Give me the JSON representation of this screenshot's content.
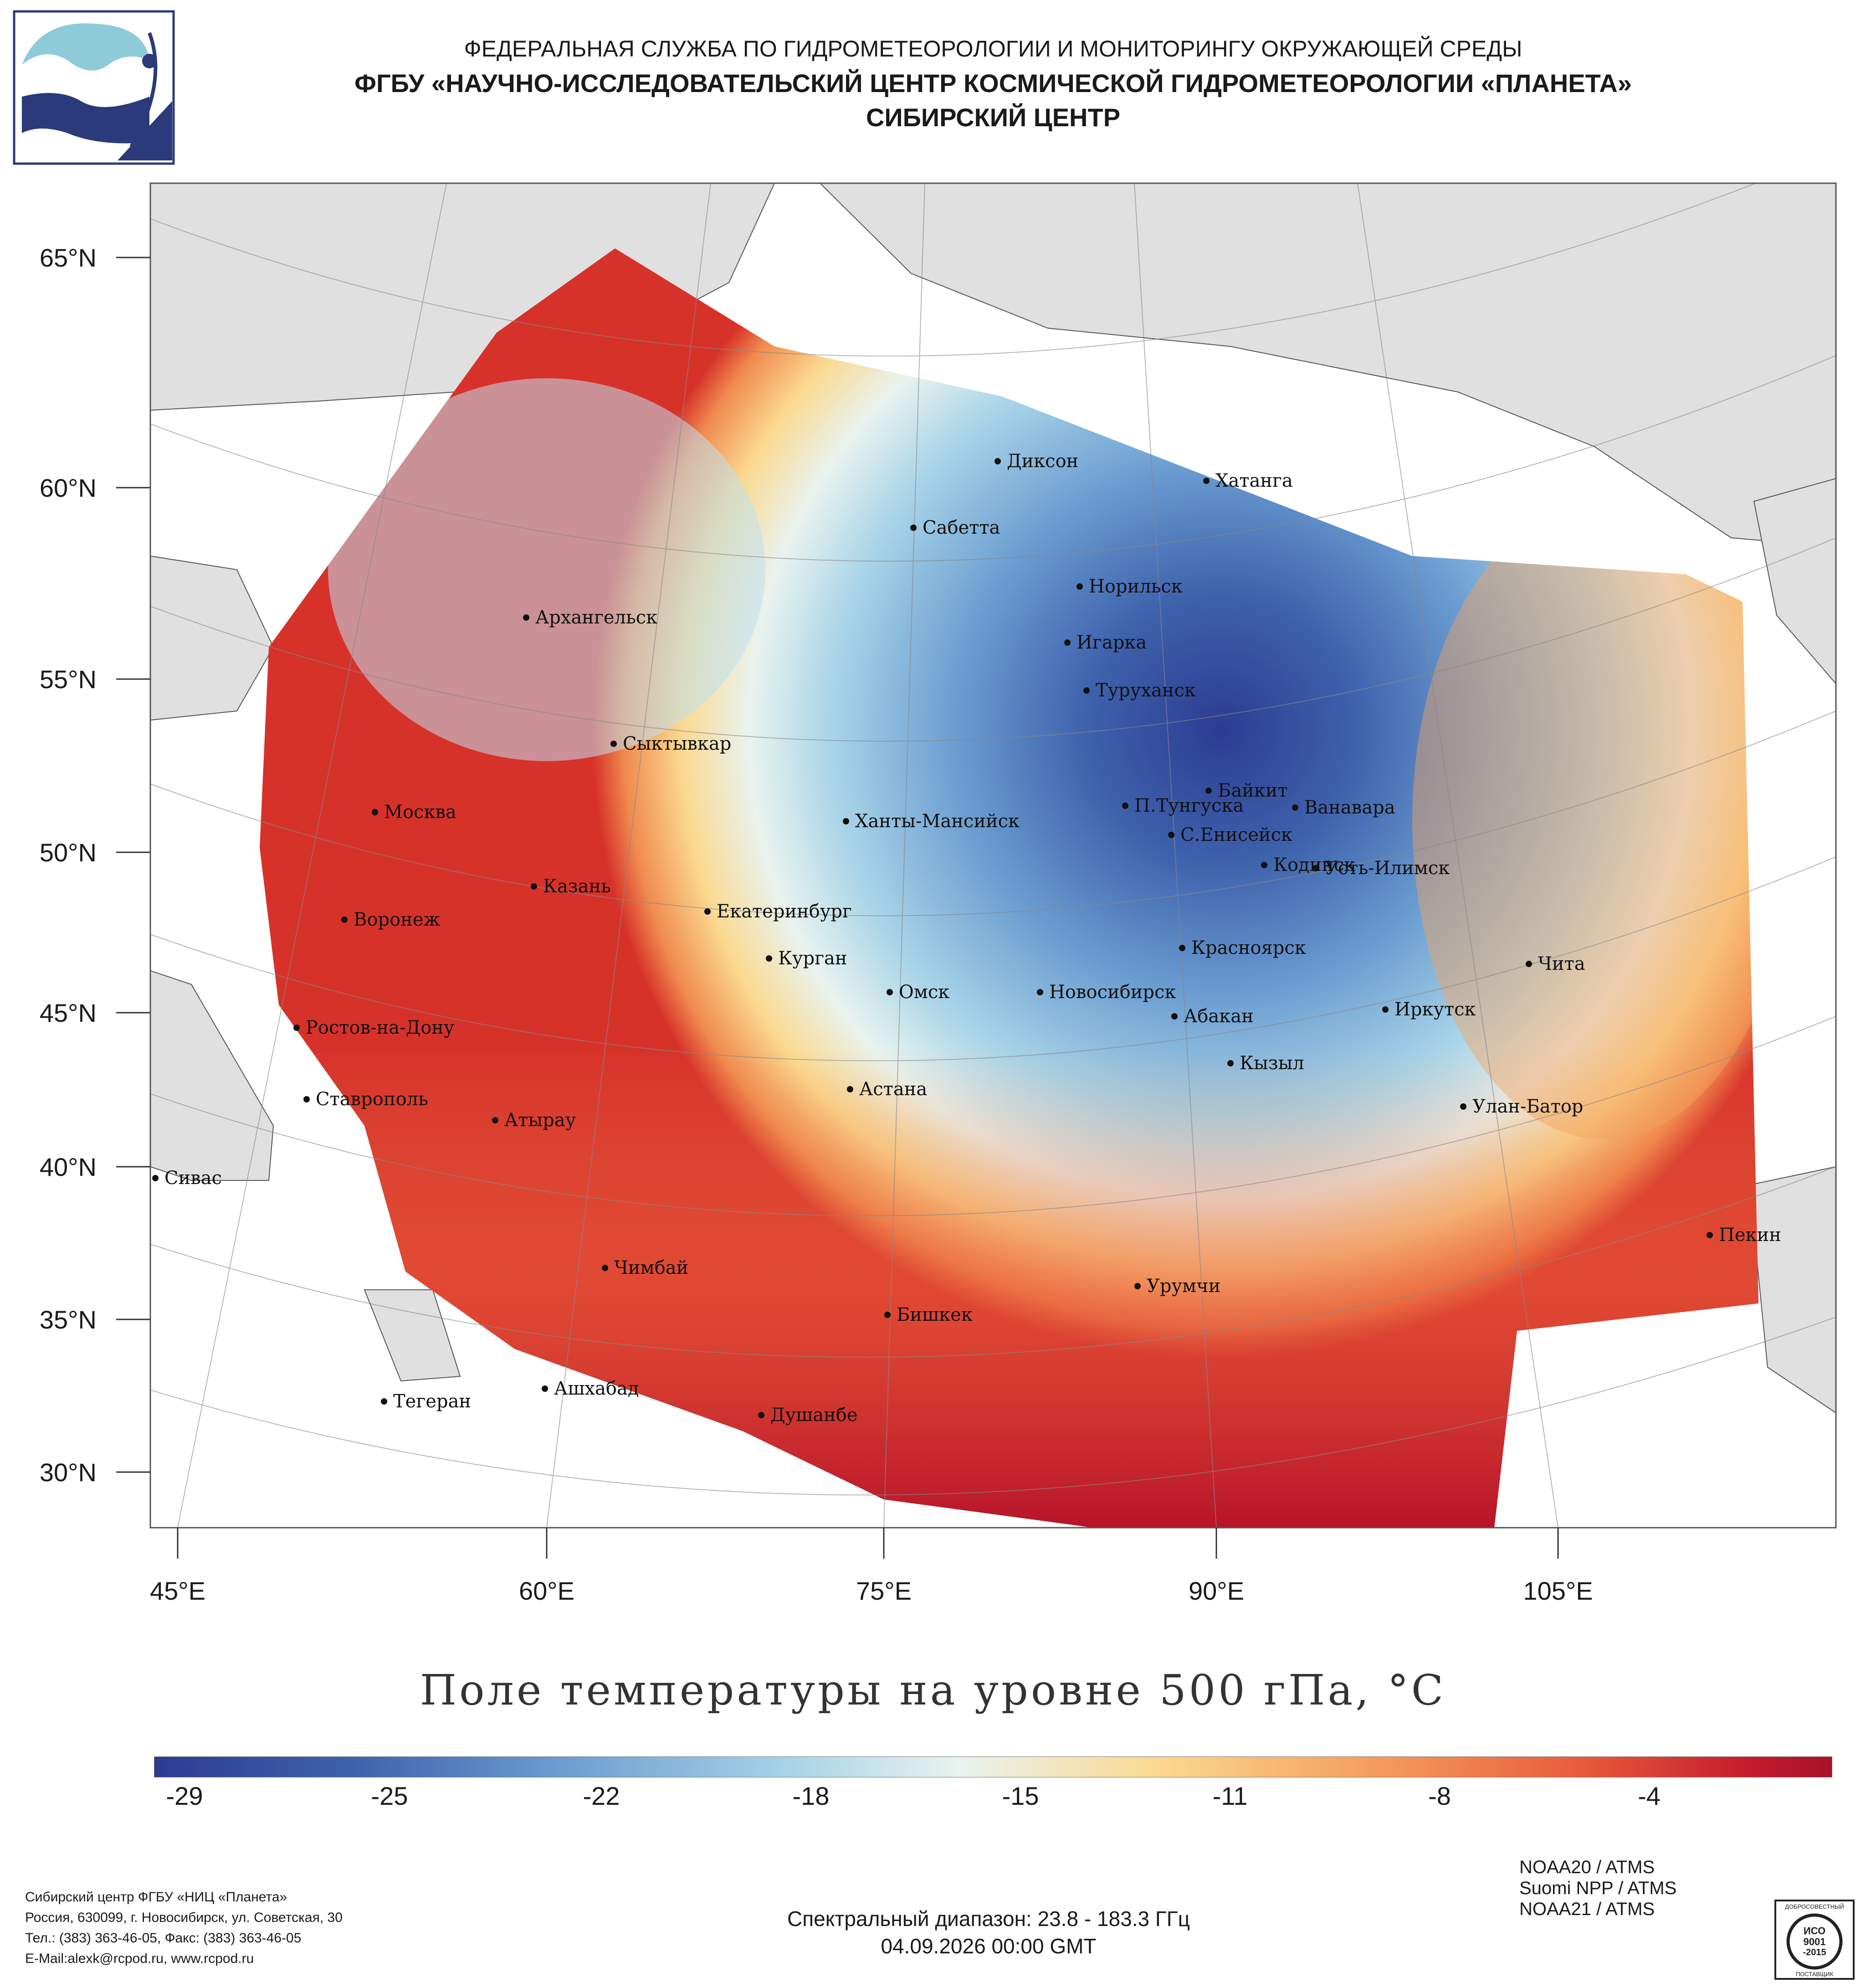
{
  "header": {
    "line1": "ФЕДЕРАЛЬНАЯ СЛУЖБА ПО ГИДРОМЕТЕОРОЛОГИИ И МОНИТОРИНГУ ОКРУЖАЮЩЕЙ СРЕДЫ",
    "line2": "ФГБУ «НАУЧНО-ИССЛЕДОВАТЕЛЬСКИЙ ЦЕНТР КОСМИЧЕСКОЙ ГИДРОМЕТЕОРОЛОГИИ «ПЛАНЕТА»",
    "line3": "СИБИРСКИЙ ЦЕНТР",
    "logo_icon": "planeta-logo-icon"
  },
  "map": {
    "lat_labels": [
      "65°N",
      "60°N",
      "55°N",
      "50°N",
      "45°N",
      "40°N",
      "35°N",
      "30°N"
    ],
    "lon_labels": [
      "45°E",
      "60°E",
      "75°E",
      "90°E",
      "105°E"
    ],
    "cities": [
      "Диксон",
      "Хатанга",
      "Сабетта",
      "Норильск",
      "Игарка",
      "Архангельск",
      "Туруханск",
      "Сыктывкар",
      "Байкит",
      "П.Тунгуска",
      "Ванавара",
      "Москва",
      "Ханты-Мансийск",
      "С.Енисейск",
      "Кодинск",
      "Усть-Илимск",
      "Казань",
      "Екатеринбург",
      "Воронеж",
      "Красноярск",
      "Курган",
      "Чита",
      "Омск",
      "Новосибирск",
      "Иркутск",
      "Абакан",
      "Ростов-на-Дону",
      "Кызыл",
      "Астана",
      "Ставрополь",
      "Улан-Батор",
      "Атырау",
      "Сивас",
      "Пекин",
      "Чимбай",
      "Урумчи",
      "Бишкек",
      "Ашхабад",
      "Тегеран",
      "Душанбе"
    ],
    "colors": {
      "coldest": "#2c3b92",
      "cold": "#4a7ec0",
      "cool": "#9bcbe3",
      "neutral": "#e9f3ef",
      "warm": "#fbd88e",
      "hot": "#f08a4f",
      "hottest": "#b3102a",
      "land": "#e0e0e0"
    }
  },
  "title": "Поле температуры на уровне 500 гПа, °C",
  "colorbar": {
    "ticks": [
      "-29",
      "-25",
      "-22",
      "-18",
      "-15",
      "-11",
      "-8",
      "-4"
    ]
  },
  "footer": {
    "org_name": "Сибирский центр ФГБУ «НИЦ «Планета»",
    "address": "Россия, 630099, г. Новосибирск, ул. Советская, 30",
    "phone": "Тел.: (383) 363-46-05, Факс: (383) 363-46-05",
    "email": "E-Mail:alexk@rcpod.ru, www.rcpod.ru",
    "spectral": "Спектральный диапазон: 23.8 - 183.3 ГГц",
    "datetime": "04.09.2026 00:00 GMT",
    "sensors": [
      "NOAA20 / ATMS",
      "Suomi NPP / ATMS",
      "NOAA21 / ATMS"
    ],
    "badge_top": "ДОБРОСОВЕСТНЫЙ",
    "badge_mid": "ИСО",
    "badge_num": "9001",
    "badge_year": "-2015",
    "badge_bottom": "ПОСТАВЩИК"
  }
}
